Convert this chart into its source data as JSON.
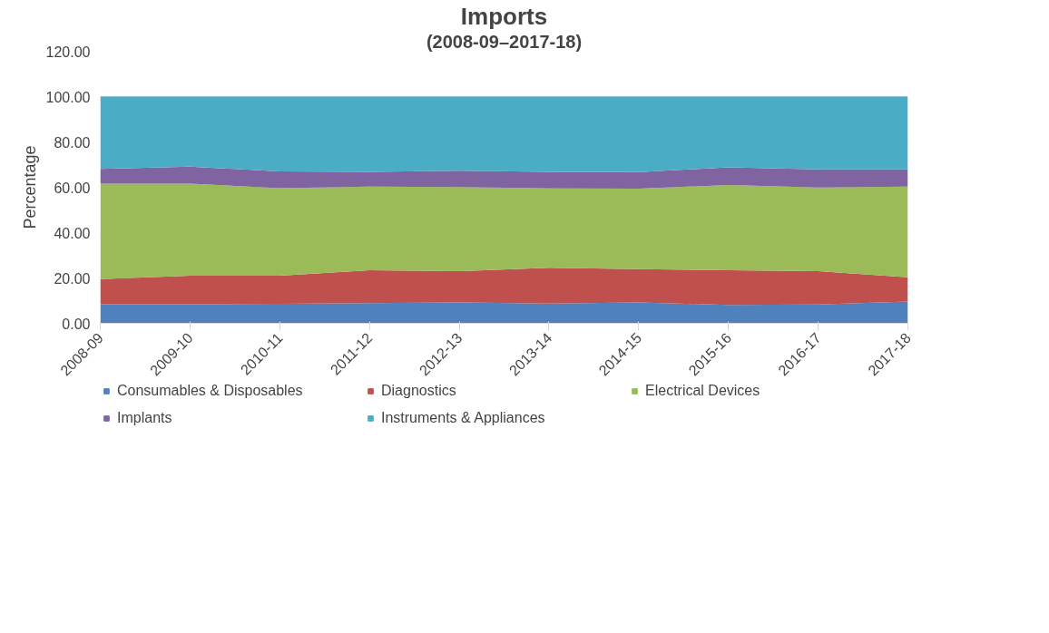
{
  "chart_data": {
    "type": "area",
    "stacked": true,
    "title": "Imports",
    "subtitle": "(2008-09–2017-18)",
    "ylabel": "Percentage",
    "categories": [
      "2008-09",
      "2009-10",
      "2010-11",
      "2011-12",
      "2012-13",
      "2013-14",
      "2014-15",
      "2015-16",
      "2016-17",
      "2017-18"
    ],
    "ylim": [
      0,
      120
    ],
    "yticks": [
      {
        "value": 0,
        "label": "0.00"
      },
      {
        "value": 20,
        "label": "20.00"
      },
      {
        "value": 40,
        "label": "40.00"
      },
      {
        "value": 60,
        "label": "60.00"
      },
      {
        "value": 80,
        "label": "80.00"
      },
      {
        "value": 100,
        "label": "100.00"
      },
      {
        "value": 120,
        "label": "120.00"
      }
    ],
    "grid": "y",
    "legend": "bottom",
    "series": [
      {
        "name": "Consumables & Disposables",
        "color": "#4f81bd",
        "values": [
          8.4,
          8.4,
          8.6,
          8.9,
          9.2,
          8.7,
          9.2,
          8.1,
          8.3,
          9.6
        ]
      },
      {
        "name": "Diagnostics",
        "color": "#c0504d",
        "values": [
          11.1,
          12.6,
          12.4,
          14.5,
          13.8,
          15.8,
          14.7,
          15.3,
          14.7,
          10.7
        ]
      },
      {
        "name": "Electrical Devices",
        "color": "#9bbb59",
        "values": [
          42.1,
          40.6,
          38.6,
          36.9,
          37.1,
          35.0,
          35.5,
          37.6,
          36.9,
          40.0
        ]
      },
      {
        "name": "Implants",
        "color": "#8064a2",
        "values": [
          6.5,
          7.5,
          7.4,
          6.5,
          7.2,
          7.3,
          7.3,
          7.8,
          8.0,
          7.6
        ]
      },
      {
        "name": "Instruments & Appliances",
        "color": "#4bacc6",
        "values": [
          31.9,
          30.9,
          33.0,
          33.2,
          32.7,
          33.2,
          33.3,
          31.2,
          32.1,
          32.1
        ]
      }
    ]
  }
}
